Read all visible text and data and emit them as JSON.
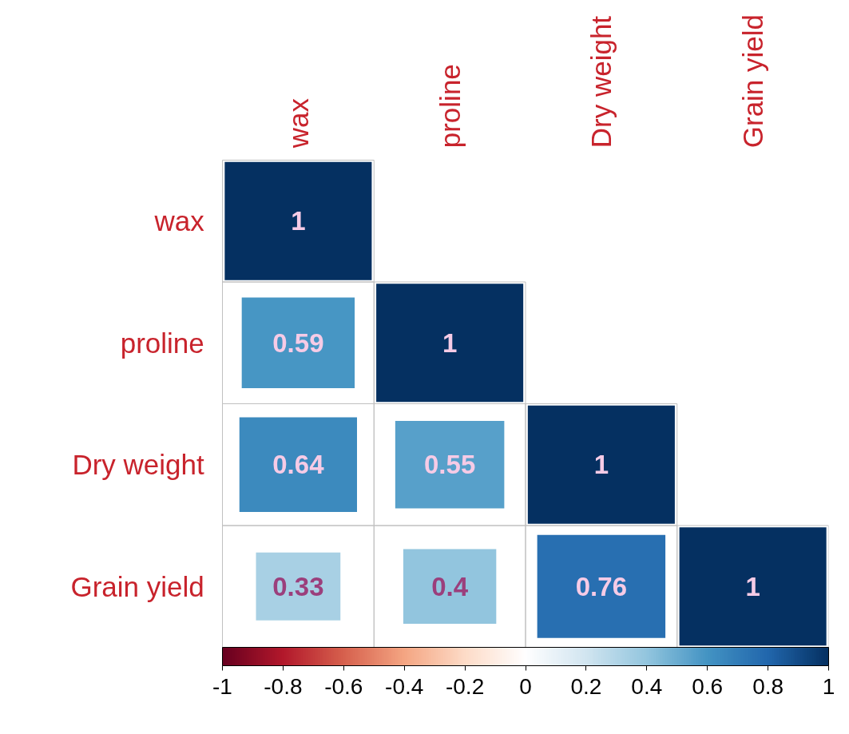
{
  "chart_data": {
    "type": "heatmap",
    "categories": [
      "wax",
      "proline",
      "Dry weight",
      "Grain yield"
    ],
    "y_categories": [
      "wax",
      "proline",
      "Dry weight",
      "Grain yield"
    ],
    "cells": [
      [
        1,
        null,
        null,
        null
      ],
      [
        0.59,
        1,
        null,
        null
      ],
      [
        0.64,
        0.55,
        1,
        null
      ],
      [
        0.33,
        0.4,
        0.76,
        1
      ]
    ],
    "clim": [
      -1,
      1
    ],
    "cticks": [
      -1,
      -0.8,
      -0.6,
      -0.4,
      -0.2,
      0,
      0.2,
      0.4,
      0.6,
      0.8,
      1
    ],
    "data_labels": true
  }
}
